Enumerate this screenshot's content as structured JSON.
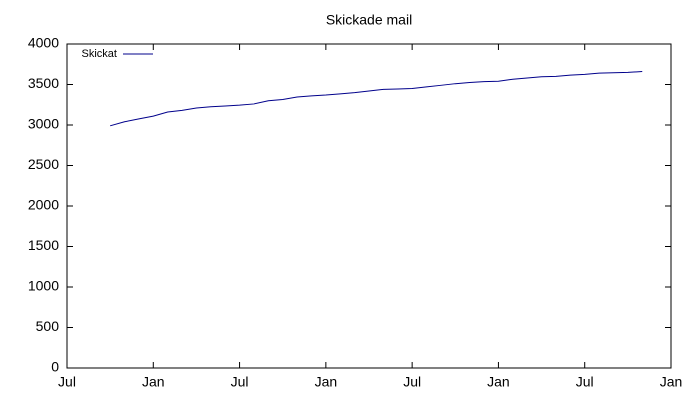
{
  "chart_data": {
    "type": "line",
    "title": "Skickade mail",
    "x": [
      3,
      4,
      5,
      6,
      7,
      8,
      9,
      10,
      11,
      12,
      13,
      14,
      15,
      16,
      17,
      18,
      19,
      20,
      21,
      22,
      23,
      24,
      25,
      26,
      27,
      28,
      29,
      30,
      31,
      32,
      33,
      34,
      35,
      36,
      37,
      38,
      39,
      40
    ],
    "series": [
      {
        "name": "Skickat",
        "color": "#00008b",
        "values": [
          2990,
          3040,
          3075,
          3110,
          3160,
          3180,
          3210,
          3225,
          3235,
          3245,
          3260,
          3300,
          3315,
          3345,
          3360,
          3370,
          3385,
          3400,
          3420,
          3440,
          3445,
          3450,
          3470,
          3490,
          3510,
          3525,
          3535,
          3540,
          3565,
          3580,
          3595,
          3600,
          3615,
          3625,
          3640,
          3645,
          3650,
          3660
        ]
      }
    ],
    "xlim": [
      0,
      42
    ],
    "xticks": [
      {
        "value": 0,
        "label": "Jul"
      },
      {
        "value": 6,
        "label": "Jan"
      },
      {
        "value": 12,
        "label": "Jul"
      },
      {
        "value": 18,
        "label": "Jan"
      },
      {
        "value": 24,
        "label": "Jul"
      },
      {
        "value": 30,
        "label": "Jan"
      },
      {
        "value": 36,
        "label": "Jul"
      },
      {
        "value": 42,
        "label": "Jan"
      }
    ],
    "ylim": [
      0,
      4000
    ],
    "yticks": [
      0,
      500,
      1000,
      1500,
      2000,
      2500,
      3000,
      3500,
      4000
    ],
    "grid": false,
    "legend": "top-left"
  }
}
